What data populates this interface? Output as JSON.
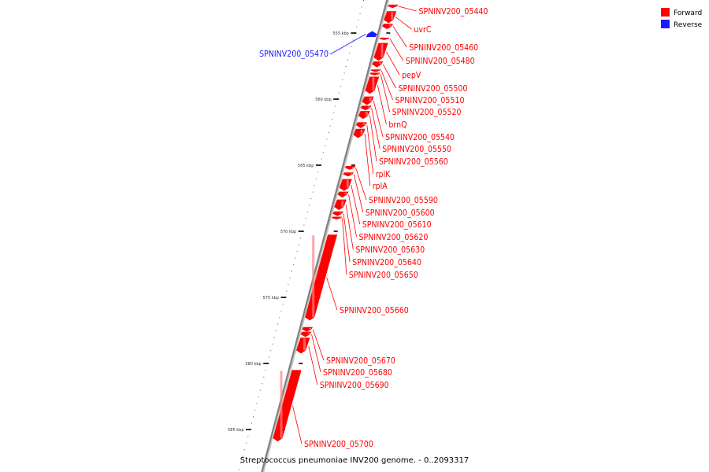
{
  "caption": "Streptococcus pneumoniae INV200 genome. - 0..2093317",
  "legend": [
    {
      "label": "Forward",
      "color": "#ff0000"
    },
    {
      "label": "Reverse",
      "color": "#1a1aff"
    }
  ],
  "colors": {
    "forward": "#ff0000",
    "forward_shade": "#ff8080",
    "reverse": "#1a1aff",
    "backbone": "#808080"
  },
  "ticks": [
    {
      "kbp": 555,
      "label": "555 kbp"
    },
    {
      "kbp": 560,
      "label": "560 kbp"
    },
    {
      "kbp": 565,
      "label": "565 kbp"
    },
    {
      "kbp": 570,
      "label": "570 kbp"
    },
    {
      "kbp": 575,
      "label": "575 kbp"
    },
    {
      "kbp": 580,
      "label": "580 kbp"
    },
    {
      "kbp": 585,
      "label": "585 kbp"
    }
  ],
  "genes": [
    {
      "name": "SPNINV200_05440",
      "start": 552.85,
      "end": 553.1,
      "strand": "forward"
    },
    {
      "name": "uvrC",
      "start": 553.35,
      "end": 554.25,
      "strand": "forward"
    },
    {
      "name": "SPNINV200_05460",
      "start": 554.3,
      "end": 554.7,
      "strand": "forward"
    },
    {
      "name": "SPNINV200_05470",
      "start": 554.85,
      "end": 555.3,
      "strand": "reverse"
    },
    {
      "name": "SPNINV200_05480",
      "start": 555.35,
      "end": 555.4,
      "strand": "forward"
    },
    {
      "name": "pepV",
      "start": 555.75,
      "end": 557.1,
      "strand": "forward"
    },
    {
      "name": "SPNINV200_05500",
      "start": 557.15,
      "end": 557.6,
      "strand": "forward"
    },
    {
      "name": "SPNINV200_05510",
      "start": 557.75,
      "end": 557.95,
      "strand": "forward"
    },
    {
      "name": "SPNINV200_05520",
      "start": 558.0,
      "end": 558.2,
      "strand": "forward"
    },
    {
      "name": "brnQ",
      "start": 558.3,
      "end": 559.6,
      "strand": "forward"
    },
    {
      "name": "SPNINV200_05540",
      "start": 559.8,
      "end": 560.45,
      "strand": "forward"
    },
    {
      "name": "SPNINV200_05550",
      "start": 560.5,
      "end": 560.85,
      "strand": "forward"
    },
    {
      "name": "SPNINV200_05560",
      "start": 560.9,
      "end": 561.5,
      "strand": "forward"
    },
    {
      "name": "rplK",
      "start": 561.75,
      "end": 562.2,
      "strand": "forward"
    },
    {
      "name": "rplA",
      "start": 562.25,
      "end": 562.95,
      "strand": "forward"
    },
    {
      "name": "SPNINV200_05590",
      "start": 565.05,
      "end": 565.35,
      "strand": "forward"
    },
    {
      "name": "SPNINV200_05600",
      "start": 565.55,
      "end": 565.85,
      "strand": "forward"
    },
    {
      "name": "SPNINV200_05610",
      "start": 566.05,
      "end": 566.95,
      "strand": "forward"
    },
    {
      "name": "SPNINV200_05620",
      "start": 567.0,
      "end": 567.45,
      "strand": "forward"
    },
    {
      "name": "SPNINV200_05630",
      "start": 567.6,
      "end": 568.4,
      "strand": "forward"
    },
    {
      "name": "SPNINV200_05640",
      "start": 568.5,
      "end": 568.85,
      "strand": "forward"
    },
    {
      "name": "SPNINV200_05650",
      "start": 568.9,
      "end": 569.1,
      "strand": "forward"
    },
    {
      "name": "SPNINV200_05660",
      "start": 570.25,
      "end": 576.75,
      "strand": "forward"
    },
    {
      "name": "SPNINV200_05670",
      "start": 577.25,
      "end": 577.6,
      "strand": "forward"
    },
    {
      "name": "SPNINV200_05680",
      "start": 577.6,
      "end": 578.0,
      "strand": "forward"
    },
    {
      "name": "SPNINV200_05690",
      "start": 578.05,
      "end": 579.25,
      "strand": "forward"
    },
    {
      "name": "SPNINV200_05700",
      "start": 580.5,
      "end": 585.9,
      "strand": "forward"
    }
  ]
}
